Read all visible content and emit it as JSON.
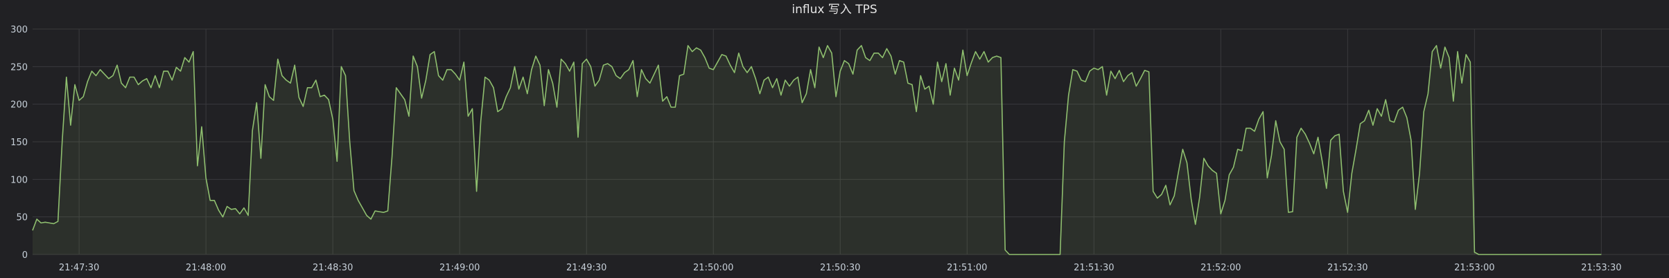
{
  "panel": {
    "title": "influx 写入 TPS"
  },
  "colors": {
    "background": "#212124",
    "grid": "#3a3a3d",
    "series_line": "#8fbf6f",
    "series_fill": "#8fbf6f"
  },
  "chart_data": {
    "type": "area",
    "title": "influx 写入 TPS",
    "xlabel": "",
    "ylabel": "",
    "ylim": [
      0,
      300
    ],
    "y_ticks": [
      0,
      50,
      100,
      150,
      200,
      250,
      300
    ],
    "x_ticks": [
      "21:47:30",
      "21:48:00",
      "21:48:30",
      "21:49:00",
      "21:49:30",
      "21:50:00",
      "21:50:30",
      "21:51:00",
      "21:51:30",
      "21:52:00",
      "21:52:30",
      "21:53:00",
      "21:53:30"
    ],
    "x_range": [
      "21:47:19",
      "21:53:46"
    ],
    "sample_interval_s": 1,
    "legend": "none",
    "grid": true,
    "series": [
      {
        "start": "21:47:19",
        "values": [
          32,
          47,
          42,
          43,
          42,
          41,
          44,
          150,
          236,
          172,
          226,
          205,
          210,
          230,
          244,
          238,
          246,
          240,
          234,
          238,
          252,
          228,
          222,
          236,
          236,
          226,
          231,
          234,
          222,
          238,
          222,
          244,
          244,
          232,
          249,
          244,
          262,
          256,
          270,
          118,
          170,
          102,
          72,
          72,
          59,
          50,
          64,
          60,
          61,
          54,
          62,
          52,
          165,
          202,
          128,
          226,
          210,
          205,
          260,
          238,
          232,
          228,
          252,
          209,
          197,
          222,
          222,
          232,
          210,
          212,
          206,
          180,
          124,
          250,
          238,
          150,
          85,
          72,
          62,
          52,
          47,
          58,
          57,
          56,
          58,
          130,
          222,
          214,
          206,
          184,
          264,
          250,
          208,
          232,
          266,
          270,
          238,
          232,
          246,
          246,
          240,
          232,
          256,
          184,
          194,
          84,
          178,
          236,
          232,
          222,
          190,
          194,
          210,
          222,
          250,
          220,
          236,
          214,
          246,
          264,
          252,
          198,
          246,
          228,
          196,
          260,
          254,
          244,
          256,
          156,
          254,
          260,
          250,
          224,
          232,
          252,
          254,
          250,
          238,
          234,
          242,
          246,
          258,
          210,
          246,
          234,
          228,
          240,
          252,
          204,
          210,
          196,
          196,
          238,
          240,
          278,
          270,
          275,
          272,
          262,
          248,
          246,
          256,
          266,
          264,
          252,
          242,
          268,
          250,
          242,
          250,
          234,
          214,
          232,
          236,
          222,
          234,
          212,
          232,
          224,
          232,
          236,
          202,
          214,
          246,
          222,
          276,
          262,
          278,
          268,
          210,
          244,
          258,
          254,
          240,
          272,
          278,
          262,
          258,
          268,
          268,
          262,
          274,
          264,
          240,
          258,
          256,
          228,
          226,
          190,
          238,
          220,
          224,
          200,
          256,
          230,
          254,
          212,
          248,
          232,
          272,
          238,
          255,
          270,
          260,
          270,
          256,
          262,
          264,
          262,
          6,
          0,
          0,
          0,
          0,
          0,
          0,
          0,
          0,
          0,
          0,
          0,
          0,
          0,
          150,
          212,
          246,
          244,
          232,
          230,
          244,
          248,
          246,
          250,
          212,
          244,
          234,
          245,
          230,
          238,
          242,
          224,
          234,
          245,
          243,
          84,
          75,
          80,
          92,
          66,
          78,
          110,
          140,
          122,
          74,
          40,
          76,
          128,
          118,
          112,
          108,
          54,
          72,
          106,
          116,
          140,
          138,
          168,
          168,
          164,
          180,
          190,
          102,
          132,
          178,
          150,
          140,
          56,
          57,
          156,
          168,
          160,
          148,
          134,
          156,
          124,
          88,
          152,
          158,
          160,
          84,
          56,
          108,
          140,
          174,
          178,
          192,
          172,
          194,
          184,
          206,
          178,
          176,
          192,
          196,
          182,
          152,
          60,
          108,
          190,
          214,
          270,
          278,
          248,
          276,
          262,
          204,
          270,
          228,
          266,
          256,
          3,
          0,
          0,
          0,
          0,
          0,
          0,
          0,
          0,
          0,
          0,
          0,
          0,
          0,
          0,
          0,
          0,
          0,
          0,
          0,
          0,
          0,
          0,
          0,
          0,
          0,
          0,
          0,
          0,
          0,
          0
        ]
      }
    ]
  }
}
